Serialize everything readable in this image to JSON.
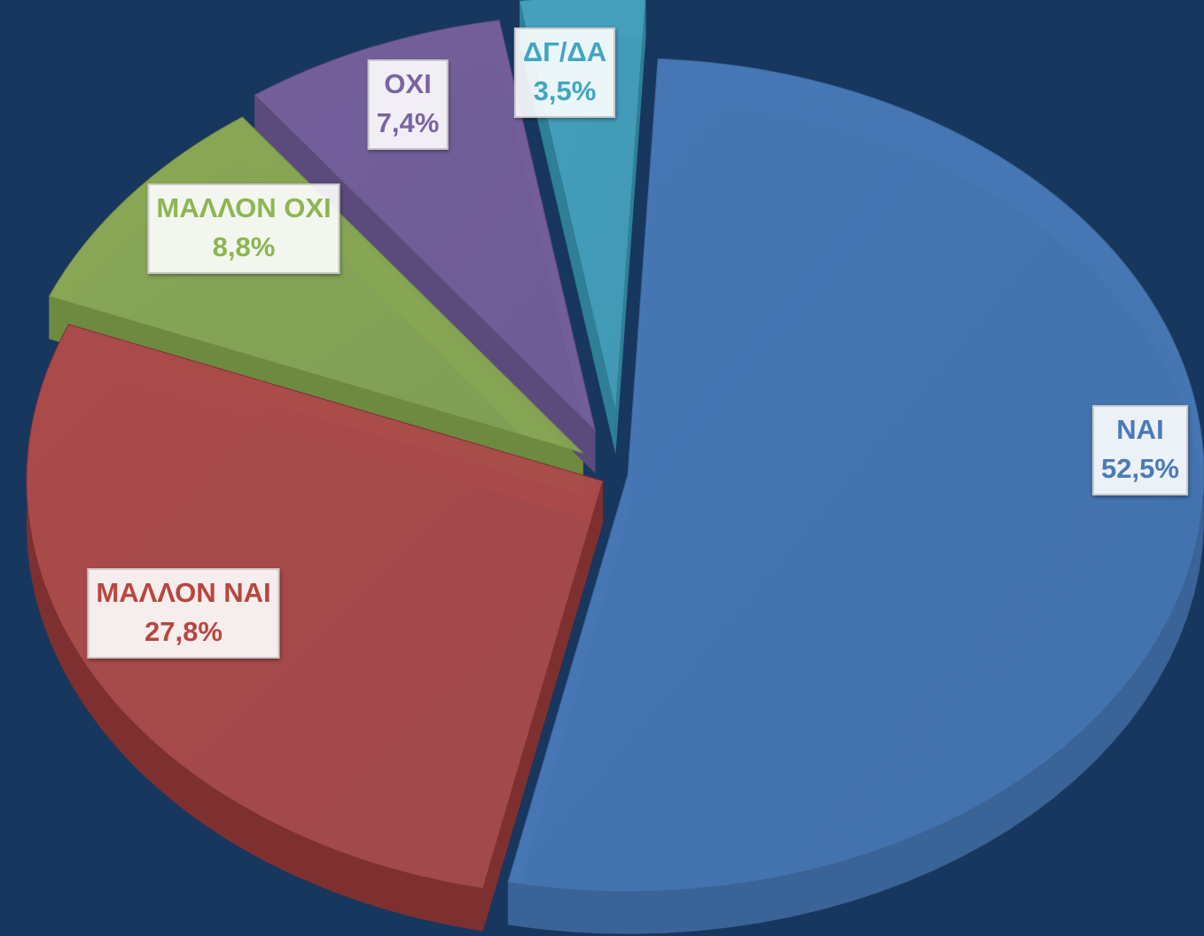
{
  "chart_data": {
    "type": "pie",
    "title": "",
    "slices": [
      {
        "label": "ΝΑΙ",
        "value": 52.5,
        "value_label": "52,5%",
        "color": "#4677b4",
        "side_color": "#3a6398",
        "label_color": "#4a7ab8",
        "key": "nai"
      },
      {
        "label": "ΜΑΛΛΟΝ ΝΑΙ",
        "value": 27.8,
        "value_label": "27,8%",
        "color": "#ab4a4a",
        "side_color": "#7e3030",
        "label_color": "#b7473f",
        "key": "mallon-nai"
      },
      {
        "label": "ΜΑΛΛΟΝ ΟΧΙ",
        "value": 8.8,
        "value_label": "8,8%",
        "color": "#88a755",
        "side_color": "#6e8a40",
        "label_color": "#8db552",
        "key": "mallon-oxi"
      },
      {
        "label": "ΟΧΙ",
        "value": 7.4,
        "value_label": "7,4%",
        "color": "#745f9b",
        "side_color": "#5b4a7c",
        "label_color": "#7b63a4",
        "key": "oxi"
      },
      {
        "label": "ΔΓ/ΔΑ",
        "value": 3.5,
        "value_label": "3,5%",
        "color": "#44a0bc",
        "side_color": "#2f7f97",
        "label_color": "#40a6c4",
        "key": "dg-da"
      }
    ],
    "legend": "none",
    "style": "3d-exploded"
  }
}
